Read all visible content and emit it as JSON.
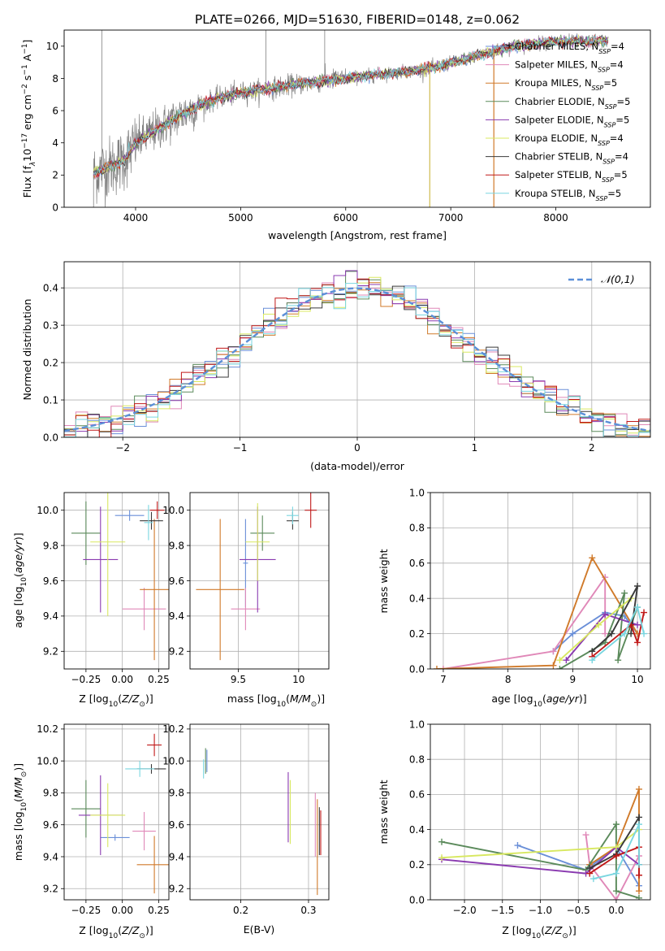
{
  "figure": {
    "title": "PLATE=0266, MJD=51630, FIBERID=0148, z=0.062"
  },
  "models": [
    {
      "name": "Chabrier MILES",
      "nssp": "4",
      "color": "#6a8fd8"
    },
    {
      "name": "Salpeter MILES",
      "nssp": "4",
      "color": "#e088b8"
    },
    {
      "name": "Kroupa MILES",
      "nssp": "5",
      "color": "#d07a2a"
    },
    {
      "name": "Chabrier ELODIE",
      "nssp": "5",
      "color": "#5b8a5b"
    },
    {
      "name": "Salpeter ELODIE",
      "nssp": "5",
      "color": "#8a3ab0"
    },
    {
      "name": "Kroupa ELODIE",
      "nssp": "4",
      "color": "#d8e860"
    },
    {
      "name": "Chabrier STELIB",
      "nssp": "4",
      "color": "#3a3a3a"
    },
    {
      "name": "Salpeter STELIB",
      "nssp": "5",
      "color": "#c01818"
    },
    {
      "name": "Kroupa STELIB",
      "nssp": "5",
      "color": "#7ad6e0"
    }
  ],
  "chart_data": [
    {
      "id": "spectrum",
      "type": "line",
      "xlabel": "wavelength [Angstrom, rest frame]",
      "ylabel": "Flux [f_λ 10^-17 erg cm^-2 s^-1 A^-1]",
      "xlim": [
        3320,
        8900
      ],
      "ylim": [
        0,
        11
      ],
      "xticks": [
        4000,
        5000,
        6000,
        7000,
        8000
      ],
      "yticks": [
        0,
        2,
        4,
        6,
        8,
        10
      ],
      "grid": false,
      "legend": "right",
      "data_color": "#808080",
      "data_wavelength_range": [
        3600,
        8500
      ],
      "model_continuum": [
        {
          "x": 3600,
          "y": 2.1
        },
        {
          "x": 3700,
          "y": 2.4
        },
        {
          "x": 3800,
          "y": 2.6
        },
        {
          "x": 3900,
          "y": 3.0
        },
        {
          "x": 4000,
          "y": 4.0
        },
        {
          "x": 4200,
          "y": 4.8
        },
        {
          "x": 4400,
          "y": 5.6
        },
        {
          "x": 4600,
          "y": 6.3
        },
        {
          "x": 4800,
          "y": 6.8
        },
        {
          "x": 5000,
          "y": 7.1
        },
        {
          "x": 5300,
          "y": 7.4
        },
        {
          "x": 5600,
          "y": 7.7
        },
        {
          "x": 6000,
          "y": 8.0
        },
        {
          "x": 6400,
          "y": 8.3
        },
        {
          "x": 6800,
          "y": 8.6
        },
        {
          "x": 7200,
          "y": 9.3
        },
        {
          "x": 7600,
          "y": 10.0
        },
        {
          "x": 8000,
          "y": 10.3
        },
        {
          "x": 8500,
          "y": 10.3
        }
      ]
    },
    {
      "id": "residuals",
      "type": "bar",
      "xlabel": "(data-model)/error",
      "ylabel": "Normed distribution",
      "xlim": [
        -2.5,
        2.5
      ],
      "ylim": [
        0,
        0.47
      ],
      "xticks": [
        -2,
        -1,
        0,
        1,
        2
      ],
      "yticks": [
        0.0,
        0.1,
        0.2,
        0.3,
        0.4
      ],
      "grid": true,
      "legend": "top-right",
      "reference_label": "𝒩(0,1)",
      "reference_color": "#5b8fd8",
      "bin_width": 0.1
    },
    {
      "id": "age_vs_Z",
      "type": "scatter",
      "xlabel": "Z [log10(Z/Z⊙)]",
      "ylabel": "age  [log10(age/yr)]",
      "xlim": [
        -0.4,
        0.32
      ],
      "ylim": [
        9.1,
        10.1
      ],
      "xticks": [
        -0.25,
        0.0,
        0.25
      ],
      "xtick_labels": [
        "−0.25",
        "0.00",
        "0.25"
      ],
      "yticks": [
        9.2,
        9.4,
        9.6,
        9.8,
        10.0
      ],
      "grid": true,
      "points": [
        {
          "model": 0,
          "x": 0.05,
          "y": 9.97,
          "xerr": 0.1,
          "yerr": 0.03
        },
        {
          "model": 1,
          "x": 0.15,
          "y": 9.44,
          "xerr": 0.15,
          "yerr": 0.12
        },
        {
          "model": 2,
          "x": 0.22,
          "y": 9.55,
          "xerr": 0.1,
          "yerr": 0.4
        },
        {
          "model": 3,
          "x": -0.25,
          "y": 9.87,
          "xerr": 0.1,
          "yerr": 0.18
        },
        {
          "model": 4,
          "x": -0.15,
          "y": 9.72,
          "xerr": 0.12,
          "yerr": 0.3
        },
        {
          "model": 5,
          "x": -0.1,
          "y": 9.82,
          "xerr": 0.12,
          "yerr": 0.42
        },
        {
          "model": 6,
          "x": 0.2,
          "y": 9.94,
          "xerr": 0.08,
          "yerr": 0.05
        },
        {
          "model": 7,
          "x": 0.24,
          "y": 10.0,
          "xerr": 0.05,
          "yerr": 0.05
        },
        {
          "model": 8,
          "x": 0.18,
          "y": 9.93,
          "xerr": 0.03,
          "yerr": 0.1
        }
      ]
    },
    {
      "id": "age_vs_mass",
      "type": "scatter",
      "xlabel": "mass [log10(M/M⊙)]",
      "xlim": [
        9.1,
        10.25
      ],
      "ylim": [
        9.1,
        10.1
      ],
      "xticks": [
        9.5,
        10.0
      ],
      "yticks": [
        9.2,
        9.4,
        9.6,
        9.8,
        10.0
      ],
      "grid": true,
      "points": [
        {
          "model": 0,
          "x": 9.56,
          "y": 9.7,
          "xerr": 0.02,
          "yerr": 0.25
        },
        {
          "model": 1,
          "x": 9.56,
          "y": 9.44,
          "xerr": 0.12,
          "yerr": 0.12
        },
        {
          "model": 2,
          "x": 9.35,
          "y": 9.55,
          "xerr": 0.2,
          "yerr": 0.4
        },
        {
          "model": 3,
          "x": 9.7,
          "y": 9.87,
          "xerr": 0.1,
          "yerr": 0.1
        },
        {
          "model": 4,
          "x": 9.66,
          "y": 9.72,
          "xerr": 0.15,
          "yerr": 0.3
        },
        {
          "model": 5,
          "x": 9.66,
          "y": 9.82,
          "xerr": 0.1,
          "yerr": 0.22
        },
        {
          "model": 6,
          "x": 9.95,
          "y": 9.94,
          "xerr": 0.05,
          "yerr": 0.05
        },
        {
          "model": 7,
          "x": 10.1,
          "y": 10.0,
          "xerr": 0.05,
          "yerr": 0.1
        },
        {
          "model": 8,
          "x": 9.95,
          "y": 9.97,
          "xerr": 0.05,
          "yerr": 0.05
        }
      ]
    },
    {
      "id": "massweight_vs_age",
      "type": "line",
      "xlabel": "age  [log10(age/yr)]",
      "ylabel": "mass weight",
      "xlim": [
        6.8,
        10.2
      ],
      "ylim": [
        0,
        1
      ],
      "xticks": [
        7,
        8,
        9,
        10
      ],
      "yticks": [
        0.0,
        0.2,
        0.4,
        0.6,
        0.8,
        1.0
      ],
      "grid": true,
      "series": [
        {
          "model": 0,
          "points": [
            [
              8.7,
              0.1
            ],
            [
              9.0,
              0.2
            ],
            [
              9.5,
              0.32
            ],
            [
              9.8,
              0.3
            ],
            [
              10.0,
              0.2
            ]
          ]
        },
        {
          "model": 1,
          "points": [
            [
              7.0,
              0.0
            ],
            [
              8.7,
              0.1
            ],
            [
              9.5,
              0.52
            ],
            [
              9.5,
              0.2
            ]
          ]
        },
        {
          "model": 2,
          "points": [
            [
              6.9,
              0.0
            ],
            [
              8.7,
              0.02
            ],
            [
              9.3,
              0.63
            ],
            [
              10.0,
              0.2
            ]
          ]
        },
        {
          "model": 3,
          "points": [
            [
              8.8,
              0.0
            ],
            [
              9.5,
              0.15
            ],
            [
              9.8,
              0.43
            ],
            [
              9.7,
              0.05
            ],
            [
              10.0,
              0.35
            ]
          ]
        },
        {
          "model": 4,
          "points": [
            [
              8.9,
              0.05
            ],
            [
              9.5,
              0.31
            ],
            [
              10.0,
              0.25
            ]
          ]
        },
        {
          "model": 5,
          "points": [
            [
              8.8,
              0.05
            ],
            [
              9.4,
              0.25
            ],
            [
              9.9,
              0.4
            ]
          ]
        },
        {
          "model": 6,
          "points": [
            [
              9.3,
              0.1
            ],
            [
              9.6,
              0.2
            ],
            [
              10.0,
              0.47
            ],
            [
              9.9,
              0.2
            ]
          ]
        },
        {
          "model": 7,
          "points": [
            [
              9.3,
              0.07
            ],
            [
              9.9,
              0.25
            ],
            [
              10.0,
              0.15
            ],
            [
              10.1,
              0.32
            ]
          ]
        },
        {
          "model": 8,
          "points": [
            [
              9.3,
              0.05
            ],
            [
              9.8,
              0.2
            ],
            [
              10.0,
              0.35
            ],
            [
              10.1,
              0.2
            ]
          ]
        }
      ]
    },
    {
      "id": "mass_vs_Z",
      "type": "scatter",
      "xlabel": "Z [log10(Z/Z⊙)]",
      "ylabel": "mass [log10(M/M⊙)]",
      "xlim": [
        -0.4,
        0.32
      ],
      "ylim": [
        9.13,
        10.23
      ],
      "xticks": [
        -0.25,
        0.0,
        0.25
      ],
      "xtick_labels": [
        "−0.25",
        "0.00",
        "0.25"
      ],
      "yticks": [
        9.2,
        9.4,
        9.6,
        9.8,
        10.0,
        10.2
      ],
      "grid": true,
      "points": [
        {
          "model": 0,
          "x": -0.05,
          "y": 9.52,
          "xerr": 0.1,
          "yerr": 0.02
        },
        {
          "model": 1,
          "x": 0.15,
          "y": 9.56,
          "xerr": 0.08,
          "yerr": 0.12
        },
        {
          "model": 2,
          "x": 0.22,
          "y": 9.35,
          "xerr": 0.12,
          "yerr": 0.18
        },
        {
          "model": 3,
          "x": -0.25,
          "y": 9.7,
          "xerr": 0.1,
          "yerr": 0.18
        },
        {
          "model": 4,
          "x": -0.15,
          "y": 9.66,
          "xerr": 0.15,
          "yerr": 0.25
        },
        {
          "model": 5,
          "x": -0.1,
          "y": 9.66,
          "xerr": 0.12,
          "yerr": 0.2
        },
        {
          "model": 6,
          "x": 0.2,
          "y": 9.95,
          "xerr": 0.1,
          "yerr": 0.03
        },
        {
          "model": 7,
          "x": 0.22,
          "y": 10.1,
          "xerr": 0.05,
          "yerr": 0.07
        },
        {
          "model": 8,
          "x": 0.12,
          "y": 9.95,
          "xerr": 0.1,
          "yerr": 0.05
        }
      ]
    },
    {
      "id": "mass_vs_ebv",
      "type": "scatter",
      "xlabel": "E(B-V)",
      "xlim": [
        0.125,
        0.33
      ],
      "ylim": [
        9.13,
        10.23
      ],
      "xticks": [
        0.2,
        0.3
      ],
      "yticks": [
        9.2,
        9.4,
        9.6,
        9.8,
        10.0,
        10.2
      ],
      "grid": true,
      "points": [
        {
          "model": 0,
          "x": 0.15,
          "y": 10.0,
          "xerr": 0,
          "yerr": 0.07
        },
        {
          "model": 3,
          "x": 0.148,
          "y": 10.0,
          "xerr": 0,
          "yerr": 0.08
        },
        {
          "model": 8,
          "x": 0.145,
          "y": 9.95,
          "xerr": 0,
          "yerr": 0.06
        },
        {
          "model": 4,
          "x": 0.27,
          "y": 9.71,
          "xerr": 0,
          "yerr": 0.22
        },
        {
          "model": 5,
          "x": 0.273,
          "y": 9.68,
          "xerr": 0,
          "yerr": 0.2
        },
        {
          "model": 1,
          "x": 0.31,
          "y": 9.6,
          "xerr": 0,
          "yerr": 0.2
        },
        {
          "model": 2,
          "x": 0.313,
          "y": 9.46,
          "xerr": 0,
          "yerr": 0.3
        },
        {
          "model": 6,
          "x": 0.316,
          "y": 9.56,
          "xerr": 0,
          "yerr": 0.15
        },
        {
          "model": 7,
          "x": 0.318,
          "y": 9.55,
          "xerr": 0,
          "yerr": 0.14
        }
      ]
    },
    {
      "id": "massweight_vs_Z",
      "type": "line",
      "xlabel": "Z [log10(Z/Z⊙)]",
      "ylabel": "mass weight",
      "xlim": [
        -2.45,
        0.45
      ],
      "ylim": [
        0,
        1
      ],
      "xticks": [
        -2.0,
        -1.5,
        -1.0,
        -0.5,
        0.0
      ],
      "xtick_labels": [
        "−2.0",
        "−1.5",
        "−1.0",
        "−0.5",
        "0.0"
      ],
      "yticks": [
        0.0,
        0.2,
        0.4,
        0.6,
        0.8,
        1.0
      ],
      "grid": true,
      "series": [
        {
          "model": 0,
          "points": [
            [
              -1.3,
              0.31
            ],
            [
              -0.4,
              0.17
            ],
            [
              0.0,
              0.3
            ],
            [
              0.3,
              0.08
            ]
          ]
        },
        {
          "model": 1,
          "points": [
            [
              -0.4,
              0.37
            ],
            [
              -0.35,
              0.2
            ],
            [
              0.0,
              0.0
            ],
            [
              0.3,
              0.25
            ]
          ]
        },
        {
          "model": 2,
          "points": [
            [
              -0.35,
              0.2
            ],
            [
              0.0,
              0.3
            ],
            [
              0.3,
              0.63
            ],
            [
              0.3,
              0.05
            ]
          ]
        },
        {
          "model": 3,
          "points": [
            [
              -2.3,
              0.33
            ],
            [
              -0.4,
              0.17
            ],
            [
              0.0,
              0.43
            ],
            [
              0.0,
              0.05
            ],
            [
              0.3,
              0.01
            ]
          ]
        },
        {
          "model": 4,
          "points": [
            [
              -2.3,
              0.23
            ],
            [
              -0.4,
              0.15
            ],
            [
              0.0,
              0.3
            ],
            [
              0.3,
              0.2
            ]
          ]
        },
        {
          "model": 5,
          "points": [
            [
              -2.3,
              0.24
            ],
            [
              0.0,
              0.3
            ],
            [
              0.3,
              0.4
            ]
          ]
        },
        {
          "model": 6,
          "points": [
            [
              -0.35,
              0.18
            ],
            [
              0.0,
              0.26
            ],
            [
              0.3,
              0.47
            ],
            [
              0.3,
              0.2
            ]
          ]
        },
        {
          "model": 7,
          "points": [
            [
              -0.35,
              0.15
            ],
            [
              0.0,
              0.25
            ],
            [
              0.3,
              0.3
            ],
            [
              0.3,
              0.14
            ]
          ]
        },
        {
          "model": 8,
          "points": [
            [
              -0.3,
              0.12
            ],
            [
              0.0,
              0.15
            ],
            [
              0.3,
              0.43
            ],
            [
              0.3,
              0.2
            ]
          ]
        }
      ]
    }
  ]
}
